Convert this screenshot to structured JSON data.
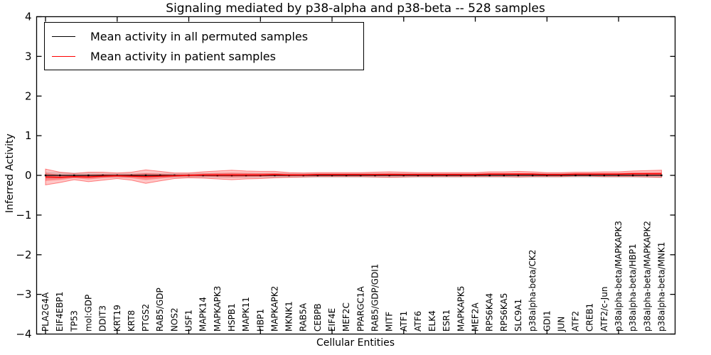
{
  "figure": {
    "title": "Signaling mediated by p38-alpha and p38-beta -- 528 samples",
    "xlabel": "Cellular Entities",
    "ylabel": "Inferred Activity"
  },
  "legend": {
    "items": [
      {
        "label": "Mean activity in all permuted samples",
        "color": "#000000"
      },
      {
        "label": "Mean activity in patient samples",
        "color": "#ff0000"
      }
    ]
  },
  "chart_data": {
    "type": "line",
    "title": "Signaling mediated by p38-alpha and p38-beta -- 528 samples",
    "xlabel": "Cellular Entities",
    "ylabel": "Inferred Activity",
    "ylim": [
      -4,
      4
    ],
    "yticks": [
      -4,
      -3,
      -2,
      -1,
      0,
      1,
      2,
      3,
      4
    ],
    "grid": false,
    "legend_position": "upper left",
    "categories": [
      "PLA2G4A",
      "EIF4EBP1",
      "TP53",
      "mol:GDP",
      "DDIT3",
      "KRT19",
      "KRT8",
      "PTGS2",
      "RAB5/GDP",
      "NOS2",
      "USF1",
      "MAPK14",
      "MAPKAPK3",
      "HSPB1",
      "MAPK11",
      "HBP1",
      "MAPKAPK2",
      "MKNK1",
      "RAB5A",
      "CEBPB",
      "EIF4E",
      "MEF2C",
      "PPARGC1A",
      "RAB5/GDP/GDI1",
      "MITF",
      "ATF1",
      "ATF6",
      "ELK4",
      "ESR1",
      "MAPKAPK5",
      "MEF2A",
      "RPS6KA4",
      "RPS6KA5",
      "SLC9A1",
      "p38alpha-beta/CK2",
      "GDI1",
      "JUN",
      "ATF2",
      "CREB1",
      "ATF2/c-Jun",
      "p38alpha-beta/MAPKAPK3",
      "p38alpha-beta/HBP1",
      "p38alpha-beta/MAPKAPK2",
      "p38alpha-beta/MNK1"
    ],
    "series": [
      {
        "name": "Mean activity in all permuted samples",
        "color": "#000000",
        "marker": "dot",
        "values": [
          0,
          0,
          0,
          0,
          0,
          0,
          0,
          0,
          0,
          0,
          0,
          0,
          0,
          0,
          0,
          0,
          0,
          0,
          0,
          0,
          0,
          0,
          0,
          0,
          0,
          0,
          0,
          0,
          0,
          0,
          0,
          0,
          0,
          0,
          0,
          0,
          0,
          0,
          0,
          0,
          0,
          0,
          0,
          0
        ],
        "band_halfwidth": [
          0.09,
          0.08,
          0.07,
          0.07,
          0.06,
          0.06,
          0.06,
          0.06,
          0.06,
          0.06,
          0.06,
          0.06,
          0.06,
          0.06,
          0.06,
          0.06,
          0.06,
          0.06,
          0.06,
          0.06,
          0.06,
          0.06,
          0.06,
          0.06,
          0.06,
          0.06,
          0.06,
          0.06,
          0.06,
          0.06,
          0.06,
          0.06,
          0.06,
          0.06,
          0.06,
          0.06,
          0.06,
          0.06,
          0.06,
          0.06,
          0.06,
          0.06,
          0.06,
          0.06
        ],
        "band_fill": "rgba(110,110,110,0.20)"
      },
      {
        "name": "Mean activity in patient samples",
        "color": "#ff0000",
        "marker": "none",
        "values": [
          -0.04,
          -0.05,
          -0.03,
          -0.04,
          -0.02,
          -0.01,
          -0.02,
          -0.03,
          -0.02,
          -0.01,
          0,
          0.01,
          0.01,
          0.01,
          0.01,
          0.01,
          0.02,
          0.01,
          0.01,
          0.02,
          0.02,
          0.02,
          0.02,
          0.02,
          0.02,
          0.02,
          0.02,
          0.02,
          0.02,
          0.02,
          0.02,
          0.03,
          0.03,
          0.03,
          0.03,
          0.02,
          0.02,
          0.03,
          0.03,
          0.03,
          0.03,
          0.04,
          0.04,
          0.04
        ],
        "band_outer_halfwidth": [
          0.2,
          0.13,
          0.08,
          0.12,
          0.1,
          0.07,
          0.1,
          0.17,
          0.12,
          0.07,
          0.06,
          0.08,
          0.1,
          0.12,
          0.1,
          0.09,
          0.08,
          0.06,
          0.05,
          0.05,
          0.05,
          0.05,
          0.05,
          0.06,
          0.07,
          0.06,
          0.05,
          0.05,
          0.05,
          0.05,
          0.05,
          0.06,
          0.06,
          0.07,
          0.06,
          0.05,
          0.05,
          0.05,
          0.05,
          0.06,
          0.06,
          0.07,
          0.08,
          0.09
        ],
        "band_fill_outer": "rgba(255,0,0,0.22)",
        "band_fill_inner": "rgba(255,0,0,0.30)",
        "band_edge": "rgba(255,0,0,0.45)"
      }
    ]
  }
}
